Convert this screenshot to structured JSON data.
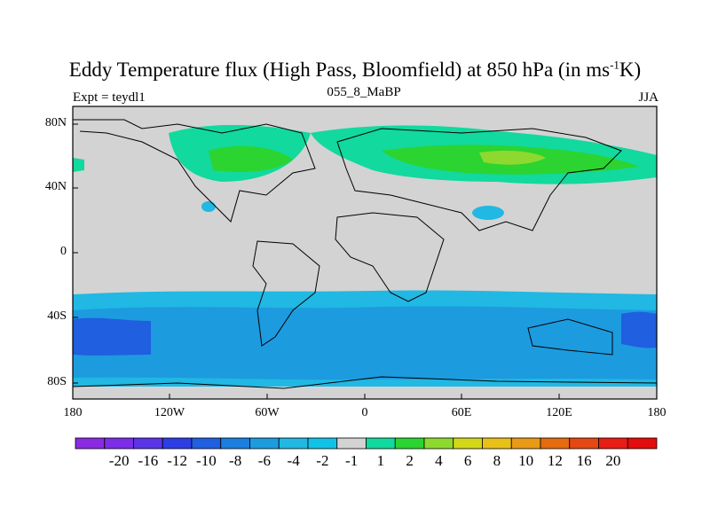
{
  "header": {
    "title": "Eddy Temperature flux (High Pass, Bloomfield) at 850 hPa (in ms",
    "title_sup": "-1",
    "title_end": "K)",
    "left": "Expt = teydl1",
    "center": "055_8_MaBP",
    "right": "JJA"
  },
  "map": {
    "y_ticks": [
      "80N",
      "40N",
      "0",
      "40S",
      "80S"
    ],
    "x_ticks": [
      "180",
      "120W",
      "60W",
      "0",
      "60E",
      "120E",
      "180"
    ],
    "land_color": "#d3d3d3"
  },
  "colorbar": {
    "colors": [
      "#8a2be2",
      "#7b2de8",
      "#5a34e6",
      "#2e3ee5",
      "#1f5fe0",
      "#1a7fdf",
      "#1d9bdf",
      "#21b8e3",
      "#11c2e6",
      "#d3d3d3",
      "#12d99e",
      "#2bd430",
      "#8ed92f",
      "#d2d71a",
      "#e9c017",
      "#e99a17",
      "#e56b10",
      "#e54812",
      "#e81d16",
      "#e40c0c"
    ],
    "labels": [
      "-20",
      "-16",
      "-12",
      "-10",
      "-8",
      "-6",
      "-4",
      "-2",
      "-1",
      "1",
      "2",
      "4",
      "6",
      "8",
      "10",
      "12",
      "16",
      "20"
    ]
  }
}
